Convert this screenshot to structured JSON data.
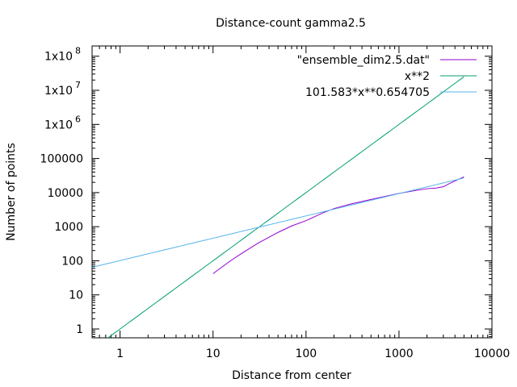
{
  "chart_data": {
    "type": "line",
    "title": "Distance-count gamma2.5",
    "xlabel": "Distance from center",
    "ylabel": "Number of points",
    "xscale": "log",
    "yscale": "log",
    "xlim": [
      0.5,
      10000
    ],
    "ylim": [
      0.55,
      200000000
    ],
    "grid": false,
    "legend_position": "top-right",
    "x_ticks": [
      {
        "value": 1,
        "label": "1"
      },
      {
        "value": 10,
        "label": "10"
      },
      {
        "value": 100,
        "label": "100"
      },
      {
        "value": 1000,
        "label": "1000"
      },
      {
        "value": 10000,
        "label": "10000"
      }
    ],
    "y_ticks": [
      {
        "value": 1,
        "label": "1",
        "sup": ""
      },
      {
        "value": 10,
        "label": "10",
        "sup": ""
      },
      {
        "value": 100,
        "label": "100",
        "sup": ""
      },
      {
        "value": 1000,
        "label": "1000",
        "sup": ""
      },
      {
        "value": 10000,
        "label": "10000",
        "sup": ""
      },
      {
        "value": 100000,
        "label": "100000",
        "sup": ""
      },
      {
        "value": 1000000,
        "label": "1x10",
        "sup": "6"
      },
      {
        "value": 10000000,
        "label": "1x10",
        "sup": "7"
      },
      {
        "value": 100000000,
        "label": "1x10",
        "sup": "8"
      }
    ],
    "series": [
      {
        "name": "\"ensemble_dim2.5.dat\"",
        "color": "#9400d3",
        "kind": "data",
        "points": [
          [
            10,
            42
          ],
          [
            15,
            95
          ],
          [
            20,
            160
          ],
          [
            30,
            320
          ],
          [
            50,
            680
          ],
          [
            70,
            1050
          ],
          [
            100,
            1500
          ],
          [
            150,
            2500
          ],
          [
            200,
            3400
          ],
          [
            300,
            4600
          ],
          [
            500,
            6300
          ],
          [
            700,
            7700
          ],
          [
            1000,
            9500
          ],
          [
            1500,
            11500
          ],
          [
            2000,
            13000
          ],
          [
            2500,
            13600
          ],
          [
            3000,
            14800
          ],
          [
            3500,
            18500
          ],
          [
            4000,
            22000
          ],
          [
            5000,
            29000
          ]
        ]
      },
      {
        "name": "x**2",
        "color": "#009e73",
        "kind": "function",
        "coef": 1,
        "exponent": 2,
        "domain": [
          0.5,
          5000
        ]
      },
      {
        "name": "101.583*x**0.654705",
        "color": "#56b4e9",
        "kind": "function",
        "coef": 101.583,
        "exponent": 0.654705,
        "domain": [
          0.5,
          5000
        ]
      }
    ]
  }
}
